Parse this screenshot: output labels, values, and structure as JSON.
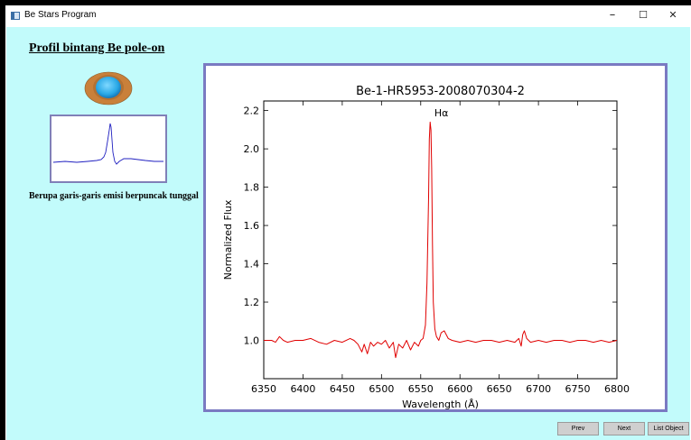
{
  "window": {
    "title": "Be Stars Program",
    "minimize_symbol": "–",
    "maximize_symbol": "☐",
    "close_symbol": "✕"
  },
  "left_panel": {
    "heading": "Profil bintang Be pole-on",
    "caption": "Berupa garis-garis emisi berpuncak tunggal",
    "star_icon": "pole-on-star-icon"
  },
  "buttons": {
    "prev": "Prev",
    "next": "Next",
    "list_object": "List Object"
  },
  "colors": {
    "background": "#c2fbfb",
    "frame_border": "#7a7ac2",
    "spectrum_line": "#e00000",
    "thumb_line": "#2020c0",
    "disk": "#c9803a",
    "star": "#29a8e6"
  },
  "chart_data": {
    "type": "line",
    "title": "Be-1-HR5953-2008070304-2",
    "xlabel": "Wavelength (Å)",
    "ylabel": "Normalized Flux",
    "xlim": [
      6350,
      6800
    ],
    "ylim": [
      0.8,
      2.25
    ],
    "xticks": [
      "6350",
      "6400",
      "6450",
      "6500",
      "6550",
      "6600",
      "6650",
      "6700",
      "6750",
      "6800"
    ],
    "yticks": [
      "1.0",
      "1.2",
      "1.4",
      "1.6",
      "1.8",
      "2.0",
      "2.2"
    ],
    "annotation": {
      "text": "Hα",
      "x": 6562.8,
      "y": 2.16
    },
    "series": [
      {
        "x": [
          6350,
          6360,
          6365,
          6370,
          6375,
          6380,
          6390,
          6400,
          6410,
          6420,
          6430,
          6440,
          6450,
          6460,
          6465,
          6470,
          6475,
          6478,
          6482,
          6486,
          6490,
          6495,
          6500,
          6505,
          6510,
          6515,
          6518,
          6522,
          6527,
          6532,
          6537,
          6542,
          6547,
          6550,
          6553,
          6556,
          6558,
          6560,
          6561,
          6562,
          6563,
          6564,
          6565,
          6566,
          6568,
          6570,
          6573,
          6576,
          6580,
          6585,
          6590,
          6600,
          6610,
          6620,
          6630,
          6640,
          6650,
          6660,
          6670,
          6675,
          6678,
          6680,
          6682,
          6685,
          6690,
          6700,
          6710,
          6720,
          6730,
          6740,
          6750,
          6760,
          6770,
          6780,
          6790,
          6800
        ],
        "y": [
          1.0,
          1.0,
          0.99,
          1.02,
          1.0,
          0.99,
          1.0,
          1.0,
          1.01,
          0.99,
          0.98,
          1.0,
          0.99,
          1.01,
          1.0,
          0.98,
          0.94,
          0.98,
          0.93,
          0.99,
          0.97,
          0.99,
          0.98,
          1.0,
          0.96,
          0.99,
          0.91,
          0.98,
          0.96,
          1.0,
          0.95,
          0.99,
          0.97,
          1.0,
          1.01,
          1.08,
          1.3,
          1.75,
          2.05,
          2.14,
          2.1,
          1.9,
          1.5,
          1.2,
          1.06,
          1.02,
          1.0,
          1.04,
          1.05,
          1.01,
          1.0,
          0.99,
          1.0,
          0.99,
          1.0,
          1.0,
          0.99,
          1.0,
          0.99,
          1.01,
          0.97,
          1.03,
          1.05,
          1.01,
          0.99,
          1.0,
          0.99,
          1.0,
          1.0,
          0.99,
          1.0,
          1.0,
          0.99,
          1.0,
          0.99,
          1.0
        ]
      }
    ]
  }
}
